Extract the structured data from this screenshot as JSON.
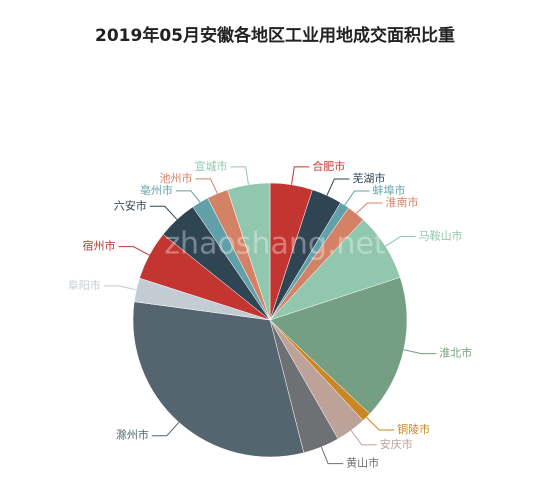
{
  "chart_data": {
    "type": "pie",
    "title": "2019年05月安徽各地区工业用地成交面积比重",
    "watermark": "zhaoshang.net",
    "categories": [
      "合肥市",
      "芜湖市",
      "蚌埠市",
      "淮南市",
      "马鞍山市",
      "淮北市",
      "铜陵市",
      "安庆市",
      "黄山市",
      "滁州市",
      "阜阳市",
      "宿州市",
      "六安市",
      "亳州市",
      "池州市",
      "宣城市"
    ],
    "values": [
      5,
      3.6,
      1.1,
      2.2,
      8,
      17,
      1.1,
      3.6,
      4.3,
      31,
      2.8,
      5.8,
      4.7,
      2,
      2.5,
      5
    ],
    "colors": [
      "#c23531",
      "#2f4554",
      "#61a0a8",
      "#d48265",
      "#91c7ae",
      "#749f83",
      "#ca8622",
      "#bda29a",
      "#6e7074",
      "#546570",
      "#c4ccd3",
      "#c23531",
      "#2f4554",
      "#61a0a8",
      "#d48265",
      "#91c7ae"
    ]
  }
}
